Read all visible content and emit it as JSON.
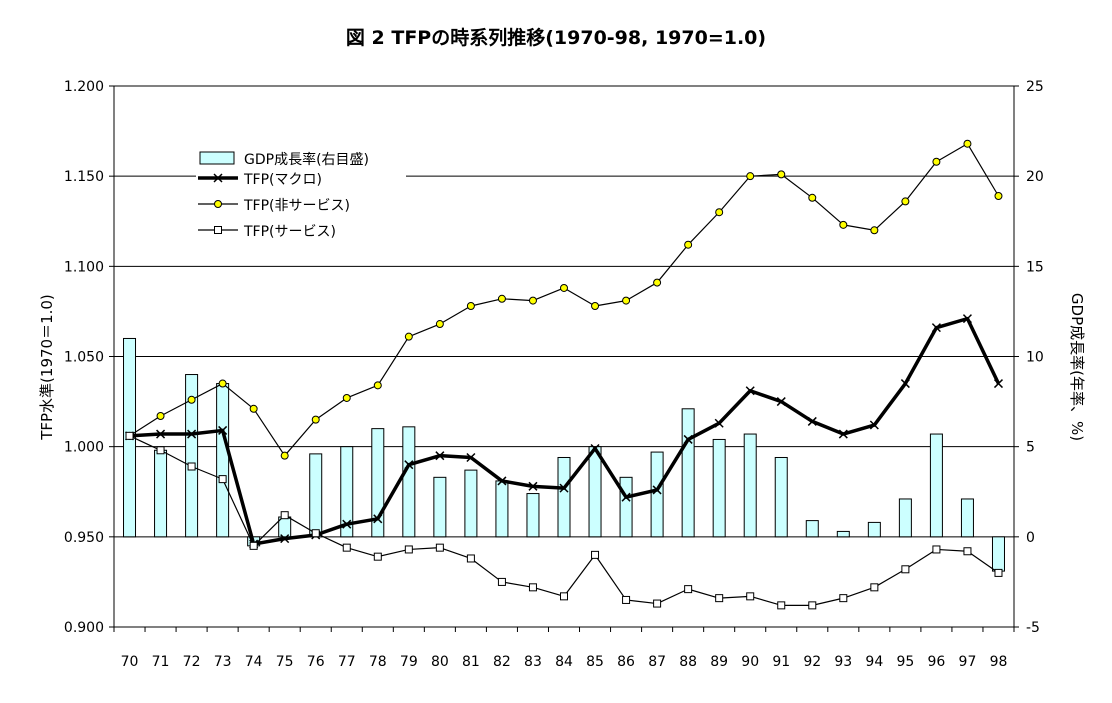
{
  "chart_data": {
    "type": "bar+line",
    "title": "図 2 TFPの時系列推移(1970-98, 1970=1.0)",
    "categories": [
      "70",
      "71",
      "72",
      "73",
      "74",
      "75",
      "76",
      "77",
      "78",
      "79",
      "80",
      "81",
      "82",
      "83",
      "84",
      "85",
      "86",
      "87",
      "88",
      "89",
      "90",
      "91",
      "92",
      "93",
      "94",
      "95",
      "96",
      "97",
      "98"
    ],
    "y_left": {
      "label": "TFP水準(1970＝1.0)",
      "range": [
        0.9,
        1.2
      ],
      "ticks": [
        "0.900",
        "0.950",
        "1.000",
        "1.050",
        "1.100",
        "1.150",
        "1.200"
      ]
    },
    "y_right": {
      "label": "GDP成長率(年率、%)",
      "range": [
        -5,
        25
      ],
      "ticks": [
        "-5",
        "0",
        "5",
        "10",
        "15",
        "20",
        "25"
      ]
    },
    "grid": true,
    "legend_position": "top-left",
    "bar_series": {
      "name": "GDP成長率(右目盛)",
      "axis": "right",
      "color": "#ccffff",
      "values": [
        11.0,
        4.8,
        9.0,
        8.5,
        -0.5,
        1.1,
        4.6,
        5.0,
        6.0,
        6.1,
        3.3,
        3.7,
        3.1,
        2.4,
        4.4,
        5.0,
        3.3,
        4.7,
        7.1,
        5.4,
        5.7,
        4.4,
        0.9,
        0.3,
        0.8,
        2.1,
        5.7,
        2.1,
        -1.9
      ]
    },
    "line_series": [
      {
        "name": "TFP(マクロ)",
        "axis": "left",
        "marker": "x",
        "color": "#000000",
        "values": [
          1.006,
          1.007,
          1.007,
          1.009,
          0.946,
          0.949,
          0.951,
          0.957,
          0.96,
          0.99,
          0.995,
          0.994,
          0.981,
          0.978,
          0.977,
          0.999,
          0.972,
          0.976,
          1.004,
          1.013,
          1.031,
          1.025,
          1.014,
          1.007,
          1.012,
          1.035,
          1.066,
          1.071,
          1.035
        ]
      },
      {
        "name": "TFP(非サービス)",
        "axis": "left",
        "marker": "circle",
        "color": "#ffff00",
        "values": [
          1.006,
          1.017,
          1.026,
          1.035,
          1.021,
          0.995,
          1.015,
          1.027,
          1.034,
          1.061,
          1.068,
          1.078,
          1.082,
          1.081,
          1.088,
          1.078,
          1.081,
          1.091,
          1.112,
          1.13,
          1.15,
          1.151,
          1.138,
          1.123,
          1.12,
          1.136,
          1.158,
          1.168,
          1.139
        ]
      },
      {
        "name": "TFP(サービス)",
        "axis": "left",
        "marker": "square",
        "color": "#ffffff",
        "values": [
          1.006,
          0.998,
          0.989,
          0.982,
          0.945,
          0.962,
          0.952,
          0.944,
          0.939,
          0.943,
          0.944,
          0.938,
          0.925,
          0.922,
          0.917,
          0.94,
          0.915,
          0.913,
          0.921,
          0.916,
          0.917,
          0.912,
          0.912,
          0.916,
          0.922,
          0.932,
          0.943,
          0.942,
          0.93
        ]
      }
    ]
  }
}
